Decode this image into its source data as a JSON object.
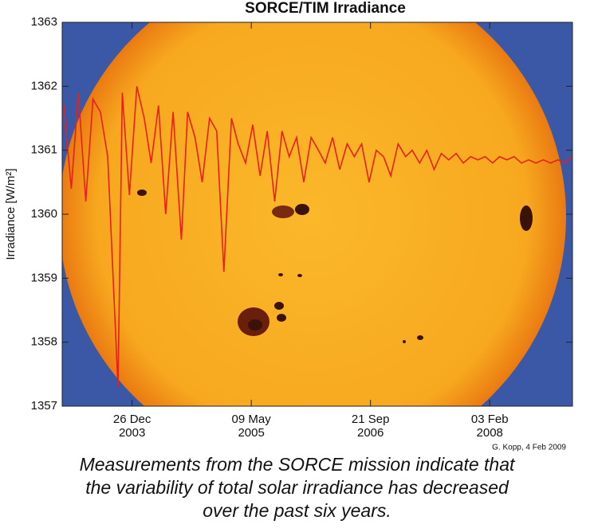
{
  "chart_data": {
    "type": "line",
    "title": "SORCE/TIM Irradiance",
    "y_label": "Irradiance [W/m²]",
    "credit": "G. Kopp, 4 Feb 2009",
    "caption": [
      "Measurements from the SORCE mission indicate that",
      "the variability of total solar irradiance has decreased",
      "over the past six years."
    ],
    "color": "#e8201a",
    "xlim": [
      "2003-03-08",
      "2009-01-15"
    ],
    "xticks": [
      {
        "value": "2003-12-26",
        "label": "26 Dec 2003"
      },
      {
        "value": "2005-05-09",
        "label": "09 May 2005"
      },
      {
        "value": "2006-09-21",
        "label": "21 Sep 2006"
      },
      {
        "value": "2008-02-03",
        "label": "03 Feb 2008"
      }
    ],
    "ylim": [
      1357,
      1363
    ],
    "yticks": [
      1357,
      1358,
      1359,
      1360,
      1361,
      1362,
      1363
    ],
    "x": [
      "2003-03-15",
      "2003-04-15",
      "2003-05-15",
      "2003-06-15",
      "2003-07-15",
      "2003-08-15",
      "2003-09-15",
      "2003-10-28",
      "2003-11-15",
      "2003-12-15",
      "2004-01-15",
      "2004-02-15",
      "2004-03-15",
      "2004-04-15",
      "2004-05-15",
      "2004-06-15",
      "2004-07-20",
      "2004-08-15",
      "2004-09-15",
      "2004-10-15",
      "2004-11-15",
      "2004-12-15",
      "2005-01-14",
      "2005-02-15",
      "2005-03-15",
      "2005-04-15",
      "2005-05-15",
      "2005-06-15",
      "2005-07-15",
      "2005-08-15",
      "2005-09-15",
      "2005-10-15",
      "2005-11-15",
      "2005-12-15",
      "2006-01-15",
      "2006-02-15",
      "2006-03-15",
      "2006-04-15",
      "2006-05-15",
      "2006-06-15",
      "2006-07-15",
      "2006-08-15",
      "2006-09-15",
      "2006-10-15",
      "2006-11-15",
      "2006-12-15",
      "2007-01-15",
      "2007-02-15",
      "2007-03-15",
      "2007-04-15",
      "2007-05-15",
      "2007-06-15",
      "2007-07-15",
      "2007-08-15",
      "2007-09-15",
      "2007-10-15",
      "2007-11-15",
      "2007-12-15",
      "2008-01-15",
      "2008-02-15",
      "2008-03-15",
      "2008-04-15",
      "2008-05-15",
      "2008-06-15",
      "2008-07-15",
      "2008-08-15",
      "2008-09-15",
      "2008-10-15",
      "2008-11-15",
      "2008-12-15",
      "2009-01-10"
    ],
    "values": [
      1361.7,
      1360.4,
      1361.9,
      1360.2,
      1361.8,
      1361.6,
      1360.9,
      1357.3,
      1361.9,
      1360.3,
      1362.0,
      1361.5,
      1360.8,
      1361.7,
      1360.0,
      1361.6,
      1359.6,
      1361.6,
      1361.2,
      1360.5,
      1361.5,
      1361.3,
      1359.1,
      1361.5,
      1361.1,
      1360.8,
      1361.4,
      1360.6,
      1361.3,
      1360.2,
      1361.3,
      1360.9,
      1361.2,
      1360.5,
      1361.2,
      1361.0,
      1360.8,
      1361.2,
      1360.7,
      1361.1,
      1360.9,
      1361.1,
      1360.5,
      1361.0,
      1360.9,
      1360.6,
      1361.1,
      1360.9,
      1361.0,
      1360.8,
      1361.0,
      1360.7,
      1360.95,
      1360.85,
      1360.95,
      1360.8,
      1360.9,
      1360.85,
      1360.9,
      1360.8,
      1360.9,
      1360.85,
      1360.9,
      1360.8,
      1360.85,
      1360.8,
      1360.85,
      1360.8,
      1360.85,
      1360.8,
      1360.9
    ]
  }
}
